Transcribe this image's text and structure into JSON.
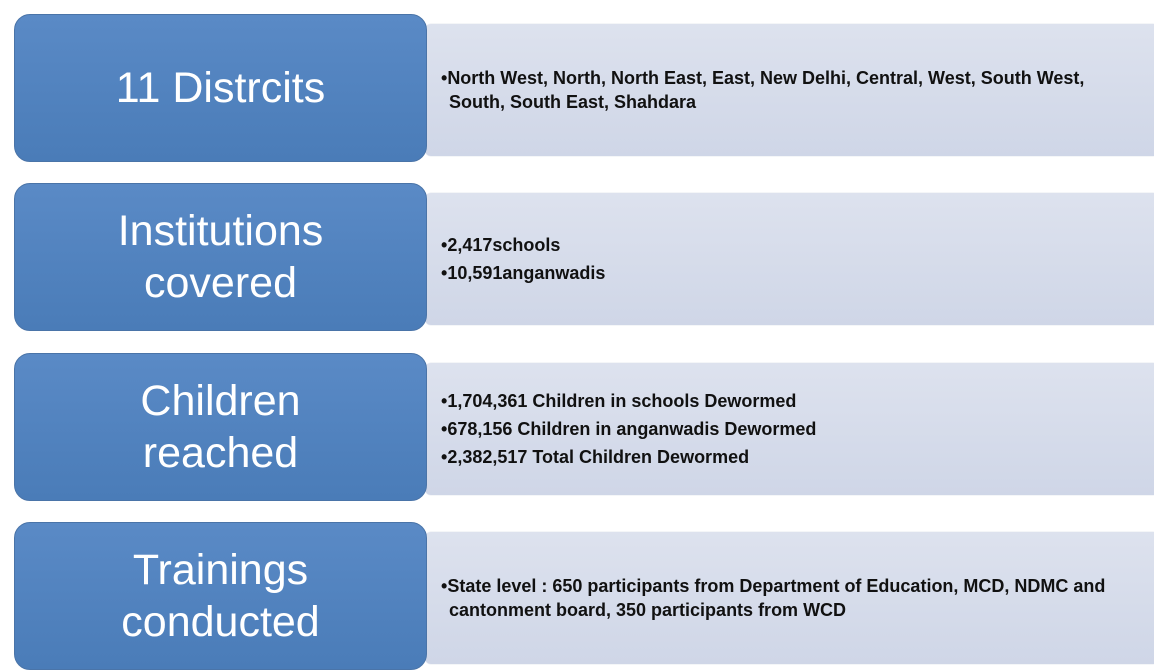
{
  "rows": [
    {
      "label": [
        "11 Distrcits"
      ],
      "items": [
        "North West, North, North East, East, New Delhi, Central, West, South West, South, South East, Shahdara"
      ]
    },
    {
      "label": [
        "Institutions",
        "covered"
      ],
      "items": [
        "2,417schools",
        "10,591anganwadis"
      ]
    },
    {
      "label": [
        "Children",
        "reached"
      ],
      "items": [
        "1,704,361 Children in schools Dewormed",
        "678,156 Children in anganwadis Dewormed",
        "2,382,517 Total Children Dewormed"
      ]
    },
    {
      "label": [
        "Trainings",
        "conducted"
      ],
      "items": [
        "State level : 650 participants from Department of Education, MCD, NDMC and cantonment board, 350 participants from WCD"
      ]
    }
  ]
}
